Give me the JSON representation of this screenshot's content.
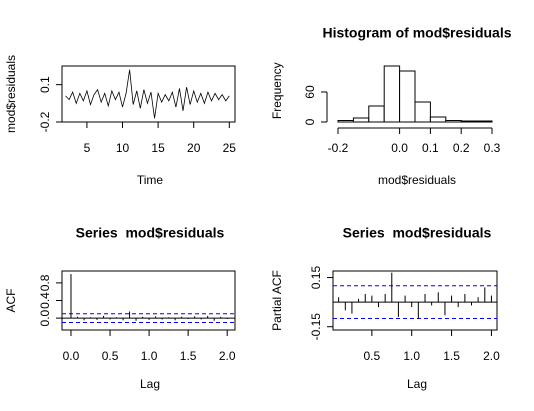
{
  "chart_data": [
    {
      "type": "line",
      "xlabel": "Time",
      "ylabel": "mod$residuals",
      "color": "#000000",
      "x": [
        2,
        2.5,
        3,
        3.5,
        4,
        4.5,
        5,
        5.5,
        6,
        6.5,
        7,
        7.5,
        8,
        8.5,
        9,
        9.5,
        10,
        10.5,
        11,
        11.5,
        12,
        12.5,
        13,
        13.5,
        14,
        14.5,
        15,
        15.5,
        16,
        16.5,
        17,
        17.5,
        18,
        18.5,
        19,
        19.5,
        20,
        20.5,
        21,
        21.5,
        22,
        22.5,
        23,
        23.5,
        24,
        24.5,
        25
      ],
      "values": [
        0.01,
        -0.02,
        0.04,
        -0.05,
        0.03,
        -0.03,
        0.05,
        -0.06,
        0.02,
        0.06,
        -0.04,
        0.03,
        -0.07,
        0.05,
        -0.02,
        0.04,
        -0.08,
        0.03,
        0.22,
        -0.06,
        0.05,
        -0.09,
        0.06,
        -0.05,
        0.04,
        -0.17,
        0.03,
        -0.04,
        0.02,
        -0.03,
        0.04,
        -0.08,
        0.07,
        -0.11,
        0.08,
        -0.06,
        0.05,
        -0.04,
        0.03,
        -0.05,
        0.04,
        -0.03,
        0.03,
        -0.02,
        0.02,
        -0.03,
        0.01
      ],
      "xlim": [
        1.5,
        25.8
      ],
      "xticks": [
        5,
        10,
        15,
        20,
        25
      ],
      "ylim": [
        -0.2,
        0.25
      ],
      "yticks": [
        -0.2,
        0.1
      ]
    },
    {
      "type": "histogram",
      "title": "Histogram of mod$residuals",
      "xlabel": "mod$residuals",
      "ylabel": "Frequency",
      "color": "#ffffff",
      "bins": [
        -0.2,
        -0.15,
        -0.1,
        -0.05,
        0,
        0.05,
        0.1,
        0.15,
        0.2,
        0.25,
        0.3
      ],
      "values": [
        3,
        8,
        32,
        112,
        102,
        40,
        10,
        3,
        2,
        2
      ],
      "xlim": [
        -0.2,
        0.3
      ],
      "xticks": [
        -0.2,
        {
          "value": 0,
          "label": "0.0"
        },
        0.1,
        0.2,
        0.3
      ],
      "ylim": [
        0,
        125
      ],
      "yticks": [
        0,
        60
      ]
    },
    {
      "type": "stem",
      "title": "Series  mod$residuals",
      "xlabel": "Lag",
      "ylabel": "ACF",
      "color": "#000000",
      "x": [
        0,
        0.083,
        0.167,
        0.25,
        0.333,
        0.417,
        0.5,
        0.583,
        0.667,
        0.75,
        0.833,
        0.917,
        1,
        1.083,
        1.167,
        1.25,
        1.333,
        1.417,
        1.5,
        1.583,
        1.667,
        1.75,
        1.833,
        1.917,
        2
      ],
      "values": [
        1,
        0.03,
        -0.05,
        0.02,
        -0.04,
        0.05,
        -0.03,
        0.02,
        -0.05,
        0.15,
        -0.06,
        0.03,
        -0.04,
        0.04,
        -0.03,
        0.02,
        -0.05,
        0.03,
        -0.02,
        0.04,
        -0.03,
        0.05,
        -0.06,
        0.03,
        -0.02
      ],
      "conf_limit": 0.1,
      "conf_color": "#0000ff",
      "xlim": [
        -0.115,
        2.1
      ],
      "xticks": [
        {
          "value": 0,
          "label": "0.0"
        },
        0.5,
        {
          "value": 1,
          "label": "1.0"
        },
        1.5,
        {
          "value": 2,
          "label": "2.0"
        }
      ],
      "ylim": [
        -0.27,
        1.07
      ],
      "yticks": [
        {
          "value": 0,
          "label": "0.0"
        },
        0.4,
        0.8
      ]
    },
    {
      "type": "stem",
      "title": "Series  mod$residuals",
      "xlabel": "Lag",
      "ylabel": "Partial ACF",
      "color": "#000000",
      "x": [
        0.083,
        0.167,
        0.25,
        0.333,
        0.417,
        0.5,
        0.583,
        0.667,
        0.75,
        0.833,
        0.917,
        1,
        1.083,
        1.167,
        1.25,
        1.333,
        1.417,
        1.5,
        1.583,
        1.667,
        1.75,
        1.833,
        1.917,
        2
      ],
      "values": [
        0.03,
        -0.05,
        -0.07,
        0.02,
        0.05,
        0.04,
        -0.03,
        0.05,
        0.18,
        -0.09,
        0.04,
        -0.03,
        -0.1,
        0.05,
        -0.02,
        0.06,
        -0.08,
        0.04,
        -0.03,
        0.05,
        -0.02,
        0.03,
        0.09,
        0.04
      ],
      "conf_limit": 0.1,
      "conf_color": "#0000ff",
      "xlim": [
        0.0125,
        2.07
      ],
      "xticks": [
        0.5,
        {
          "value": 1,
          "label": "1.0"
        },
        1.5,
        {
          "value": 2,
          "label": "2.0"
        }
      ],
      "ylim": [
        -0.17,
        0.19
      ],
      "yticks": [
        -0.15,
        0.15
      ]
    }
  ]
}
